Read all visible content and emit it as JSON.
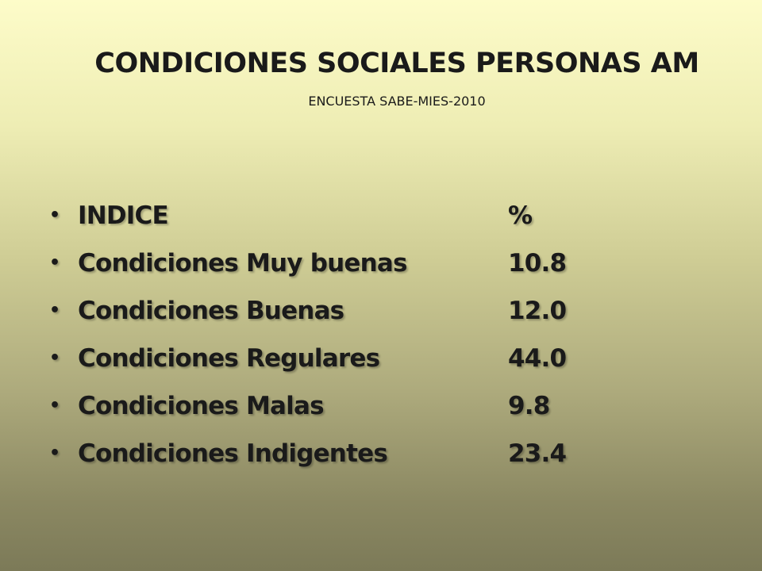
{
  "slide": {
    "title": "CONDICIONES SOCIALES PERSONAS AM",
    "subtitle": "ENCUESTA SABE-MIES-2010"
  },
  "bullet_glyph": "•",
  "table": {
    "header": {
      "label": "INDICE",
      "value": "%"
    },
    "rows": [
      {
        "label": "Condiciones Muy buenas",
        "value": "10.8"
      },
      {
        "label": "Condiciones Buenas",
        "value": "12.0"
      },
      {
        "label": "Condiciones Regulares",
        "value": "44.0"
      },
      {
        "label": "Condiciones Malas",
        "value": "9.8"
      },
      {
        "label": "Condiciones Indigentes",
        "value": "23.4"
      }
    ]
  },
  "colors": {
    "background_top": "#fdfcc9",
    "background_bottom": "#7c7a58",
    "text": "#1a1a1a"
  }
}
